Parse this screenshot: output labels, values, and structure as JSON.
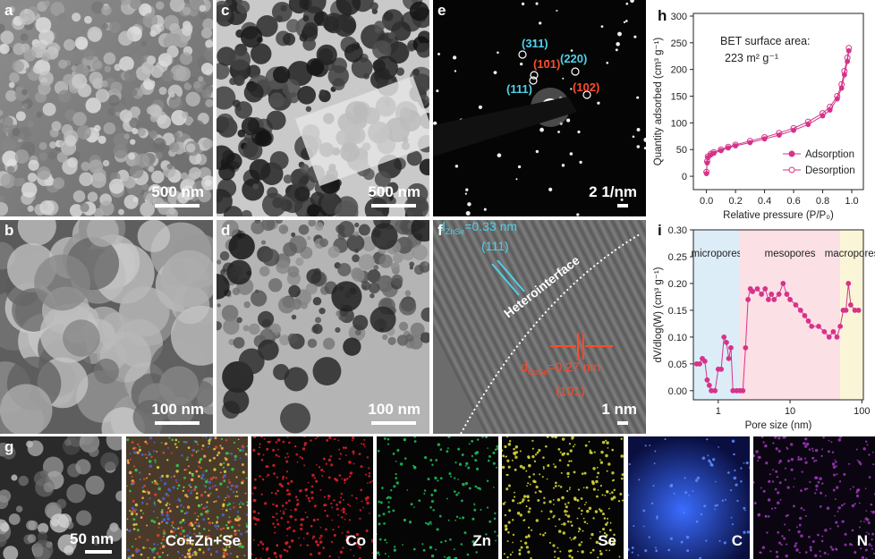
{
  "panels": [
    {
      "label": "a",
      "scale_bar": "500 nm"
    },
    {
      "label": "b",
      "scale_bar": "100 nm"
    },
    {
      "label": "c",
      "scale_bar": "500 nm"
    },
    {
      "label": "d",
      "scale_bar": "100 nm"
    },
    {
      "label": "e",
      "scale_bar": "2 1/nm"
    },
    {
      "label": "f",
      "scale_bar": "1 nm"
    }
  ],
  "saed_labels": [
    "(311)",
    "(101)",
    "(220)",
    "(111)",
    "(102)"
  ],
  "hrtem": {
    "d1_symbol": "d",
    "d1_sub": "ZnSe",
    "d1_value": "=0.33 nm",
    "d1_plane": "(111)",
    "interface": "Heterointerface",
    "d2_symbol": "d",
    "d2_sub": "CoSe",
    "d2_value": "=0.27 nm",
    "d2_plane": "(101)"
  },
  "mapping": {
    "label": "g",
    "scale_bar": "50 nm",
    "channels": [
      "Co+Zn+Se",
      "Co",
      "Zn",
      "Se",
      "C",
      "N"
    ]
  },
  "chart_data": [
    {
      "type": "line",
      "label": "h",
      "annotation": [
        "BET surface area:",
        "223 m² g⁻¹"
      ],
      "x_label": "Relative pressure (P/P₀)",
      "y_label": "Quantity adsorbed (cm³ g⁻¹)",
      "xlim": [
        -0.09,
        1.08
      ],
      "ylim": [
        -25,
        305
      ],
      "xticks": [
        {
          "value": 0,
          "label": "0.0"
        },
        {
          "value": 0.2,
          "label": "0.2"
        },
        {
          "value": 0.4,
          "label": "0.4"
        },
        {
          "value": 0.6,
          "label": "0.6"
        },
        {
          "value": 0.8,
          "label": "0.8"
        },
        {
          "value": 1,
          "label": "1.0"
        }
      ],
      "yticks": [
        0,
        50,
        100,
        150,
        200,
        250,
        300
      ],
      "legend": "lower right",
      "x": [
        0,
        0.005,
        0.01,
        0.03,
        0.05,
        0.1,
        0.15,
        0.2,
        0.3,
        0.4,
        0.5,
        0.6,
        0.7,
        0.8,
        0.85,
        0.9,
        0.93,
        0.95,
        0.97,
        0.98
      ],
      "series": [
        {
          "name": "Adsorption",
          "color": "#d6338a",
          "filled": true,
          "values": [
            5,
            25,
            35,
            40,
            43,
            48,
            53,
            57,
            63,
            70,
            77,
            86,
            97,
            113,
            124,
            145,
            165,
            190,
            215,
            235
          ]
        },
        {
          "name": "Desorption",
          "color": "#d6338a",
          "filled": false,
          "values": [
            8,
            28,
            37,
            42,
            45,
            50,
            55,
            59,
            66,
            73,
            81,
            90,
            102,
            118,
            130,
            150,
            172,
            197,
            222,
            240
          ]
        }
      ]
    },
    {
      "type": "line",
      "label": "i",
      "log_x": true,
      "x_label": "Pore size (nm)",
      "y_label": "dV/dlog(W) (cm³ g⁻¹)",
      "xlim": [
        0.45,
        105
      ],
      "ylim": [
        -0.017,
        0.3
      ],
      "xticks": [
        1,
        10,
        100
      ],
      "yticks": [
        {
          "value": 0,
          "label": "0.00"
        },
        {
          "value": 0.05,
          "label": "0.05"
        },
        {
          "value": 0.1,
          "label": "0.10"
        },
        {
          "value": 0.15,
          "label": "0.15"
        },
        {
          "value": 0.2,
          "label": "0.20"
        },
        {
          "value": 0.25,
          "label": "0.25"
        },
        {
          "value": 0.3,
          "label": "0.30"
        }
      ],
      "region_bounds": [
        2,
        50
      ],
      "regions": [
        {
          "name": "micropores",
          "color": "#dcedf8"
        },
        {
          "name": "mesopores",
          "color": "#fbe0e6"
        },
        {
          "name": "macropores",
          "color": "#fbf5d8"
        }
      ],
      "x": [
        0.5,
        0.55,
        0.6,
        0.65,
        0.7,
        0.75,
        0.8,
        0.9,
        1,
        1.1,
        1.2,
        1.3,
        1.4,
        1.5,
        1.6,
        1.8,
        2,
        2.2,
        2.4,
        2.6,
        2.8,
        3,
        3.5,
        4,
        4.5,
        5,
        5.5,
        6,
        7,
        8,
        9,
        10,
        12,
        14,
        16,
        18,
        20,
        25,
        30,
        35,
        40,
        45,
        50,
        55,
        60,
        65,
        70,
        80,
        90
      ],
      "series": [
        {
          "name": null,
          "color": "#d6338a",
          "values": [
            0.05,
            0.05,
            0.06,
            0.055,
            0.02,
            0.01,
            0,
            0,
            0.04,
            0.04,
            0.1,
            0.09,
            0.06,
            0.08,
            0,
            0,
            0,
            0,
            0.08,
            0.17,
            0.19,
            0.185,
            0.19,
            0.18,
            0.19,
            0.17,
            0.18,
            0.17,
            0.18,
            0.2,
            0.18,
            0.17,
            0.16,
            0.15,
            0.14,
            0.13,
            0.12,
            0.12,
            0.11,
            0.1,
            0.11,
            0.1,
            0.12,
            0.15,
            0.15,
            0.2,
            0.16,
            0.15,
            0.15
          ]
        }
      ]
    }
  ]
}
